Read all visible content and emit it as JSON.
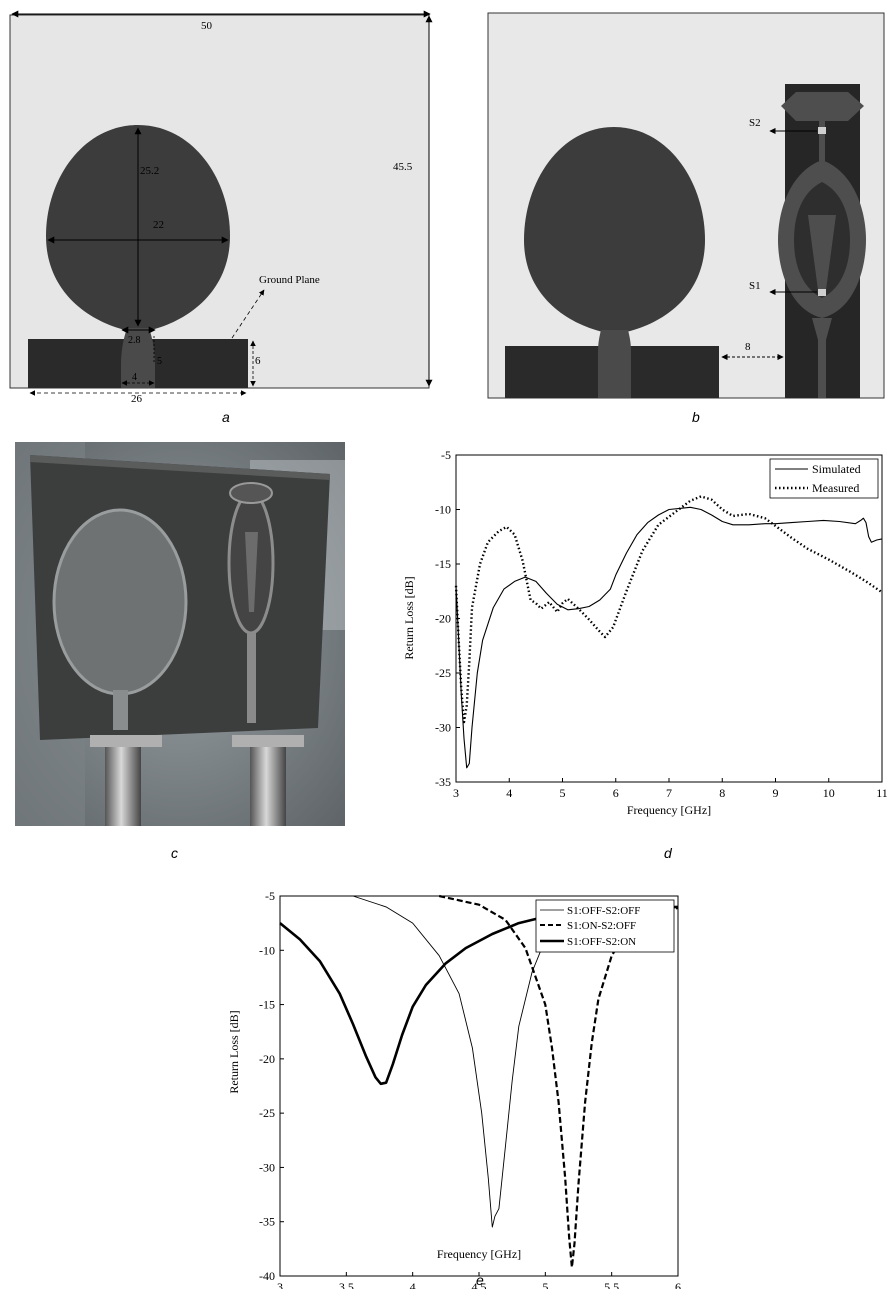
{
  "panels": {
    "a": {
      "caption": "a",
      "dims": {
        "width": "50",
        "height": "45.5",
        "patch_height": "25.2",
        "patch_width": "22",
        "neck": "2.8",
        "feed_len": "5",
        "ground_h": "6",
        "feed_w": "4",
        "ground_w": "26"
      },
      "ground_plane_label": "Ground Plane"
    },
    "b": {
      "caption": "b",
      "s1": "S1",
      "s2": "S2",
      "gap": "8"
    },
    "c": {
      "caption": "c"
    },
    "d": {
      "caption": "d"
    },
    "e": {
      "caption": "e"
    }
  },
  "colors": {
    "patch": "#3c3c3c",
    "ground": "#2a2a2a",
    "feed": "#4a4a4a",
    "board_bg": "#e2e2e2",
    "filter_strip": "#262626",
    "filter_mid": "#4e4e4e",
    "filter_dark": "#2e2e2e"
  },
  "chart_data": [
    {
      "id": "d",
      "type": "line",
      "xlabel": "Frequency [GHz]",
      "ylabel": "Return Loss [dB]",
      "xlim": [
        3,
        11
      ],
      "ylim": [
        -35,
        -5
      ],
      "xticks": [
        3,
        4,
        5,
        6,
        7,
        8,
        9,
        10,
        11
      ],
      "yticks": [
        -5,
        -10,
        -15,
        -20,
        -25,
        -30,
        -35
      ],
      "legend": "top-right",
      "series": [
        {
          "name": "Simulated",
          "style": "solid",
          "x": [
            3.0,
            3.05,
            3.1,
            3.15,
            3.2,
            3.25,
            3.3,
            3.4,
            3.5,
            3.7,
            3.9,
            4.1,
            4.3,
            4.5,
            4.7,
            4.9,
            5.1,
            5.3,
            5.5,
            5.7,
            5.9,
            6.0,
            6.2,
            6.4,
            6.6,
            6.8,
            7.0,
            7.2,
            7.4,
            7.6,
            7.8,
            8.0,
            8.2,
            8.5,
            8.8,
            9.0,
            9.3,
            9.6,
            9.9,
            10.2,
            10.5,
            10.6,
            10.65,
            10.7,
            10.75,
            10.8,
            10.9,
            11.0
          ],
          "y": [
            -17,
            -22,
            -27,
            -31,
            -33.7,
            -33.3,
            -30,
            -25,
            -22,
            -19,
            -17.3,
            -16.6,
            -16.2,
            -16.6,
            -17.7,
            -18.7,
            -19.2,
            -19.1,
            -18.9,
            -18.3,
            -17.3,
            -16,
            -14,
            -12.3,
            -11.2,
            -10.5,
            -10,
            -9.9,
            -9.8,
            -10.0,
            -10.5,
            -11.1,
            -11.4,
            -11.4,
            -11.3,
            -11.3,
            -11.2,
            -11.1,
            -11.0,
            -11.1,
            -11.3,
            -11.0,
            -10.8,
            -11.2,
            -12.5,
            -13.0,
            -12.8,
            -12.7
          ]
        },
        {
          "name": "Measured",
          "style": "dotted",
          "x": [
            3.0,
            3.05,
            3.1,
            3.15,
            3.2,
            3.25,
            3.3,
            3.45,
            3.6,
            3.8,
            3.95,
            4.1,
            4.25,
            4.4,
            4.5,
            4.6,
            4.75,
            4.9,
            5.0,
            5.1,
            5.3,
            5.5,
            5.7,
            5.8,
            5.95,
            6.2,
            6.5,
            6.8,
            7.1,
            7.4,
            7.6,
            7.8,
            8.0,
            8.2,
            8.5,
            8.8,
            9.0,
            9.3,
            9.6,
            10.0,
            10.4,
            10.7,
            11.0
          ],
          "y": [
            -17,
            -22,
            -26.5,
            -29.5,
            -28,
            -24,
            -19,
            -15,
            -13,
            -12,
            -11.6,
            -12.3,
            -14.7,
            -18.3,
            -18.6,
            -19.1,
            -18.5,
            -19.4,
            -18.6,
            -18.2,
            -19.1,
            -20.1,
            -21.2,
            -21.7,
            -20.8,
            -17.5,
            -13.8,
            -11.4,
            -10.3,
            -9.2,
            -8.8,
            -9.1,
            -10.0,
            -10.6,
            -10.4,
            -10.8,
            -11.5,
            -12.6,
            -13.6,
            -14.6,
            -15.7,
            -16.6,
            -17.6
          ]
        }
      ]
    },
    {
      "id": "e",
      "type": "line",
      "xlabel": "Frequency [GHz]",
      "ylabel": "Return Loss [dB]",
      "xlim": [
        3,
        6
      ],
      "ylim": [
        -40,
        -5
      ],
      "xticks": [
        3,
        3.5,
        4,
        4.5,
        5,
        5.5,
        6
      ],
      "yticks": [
        -5,
        -10,
        -15,
        -20,
        -25,
        -30,
        -35,
        -40
      ],
      "legend": "top-right",
      "series": [
        {
          "name": "S1:OFF-S2:OFF",
          "style": "thin",
          "x": [
            3.55,
            3.8,
            4.0,
            4.2,
            4.35,
            4.45,
            4.52,
            4.57,
            4.6,
            4.62,
            4.65,
            4.7,
            4.75,
            4.8,
            4.9,
            5.0,
            5.1,
            5.2,
            5.3
          ],
          "y": [
            -5,
            -6,
            -7.5,
            -10.5,
            -14,
            -19,
            -25,
            -31,
            -35.5,
            -34.5,
            -33.8,
            -28,
            -22,
            -17,
            -12,
            -9,
            -7.3,
            -6.3,
            -5.7
          ]
        },
        {
          "name": "S1:ON-S2:OFF",
          "style": "dashed",
          "x": [
            4.2,
            4.5,
            4.7,
            4.85,
            5.0,
            5.05,
            5.1,
            5.15,
            5.18,
            5.2,
            5.22,
            5.25,
            5.3,
            5.35,
            5.4,
            5.5,
            5.6,
            5.75,
            5.9,
            6.0
          ],
          "y": [
            -5,
            -5.8,
            -7.2,
            -9.8,
            -15,
            -19,
            -24,
            -31,
            -36.5,
            -39.2,
            -37,
            -31.5,
            -24,
            -18.5,
            -14.5,
            -10.5,
            -8.5,
            -7.2,
            -6.4,
            -6.1
          ]
        },
        {
          "name": "S1:OFF-S2:ON",
          "style": "thick",
          "x": [
            3.0,
            3.15,
            3.3,
            3.45,
            3.55,
            3.65,
            3.72,
            3.76,
            3.8,
            3.85,
            3.92,
            4.0,
            4.1,
            4.25,
            4.4,
            4.6,
            4.8,
            5.0,
            5.2,
            5.4,
            5.6,
            5.8,
            6.0
          ],
          "y": [
            -7.5,
            -9,
            -11,
            -14,
            -16.8,
            -19.8,
            -21.7,
            -22.3,
            -22.2,
            -20.5,
            -17.8,
            -15.2,
            -13.2,
            -11.2,
            -9.8,
            -8.5,
            -7.5,
            -6.9,
            -6.5,
            -6.3,
            -6.2,
            -6.1,
            -6.0
          ]
        }
      ]
    }
  ]
}
